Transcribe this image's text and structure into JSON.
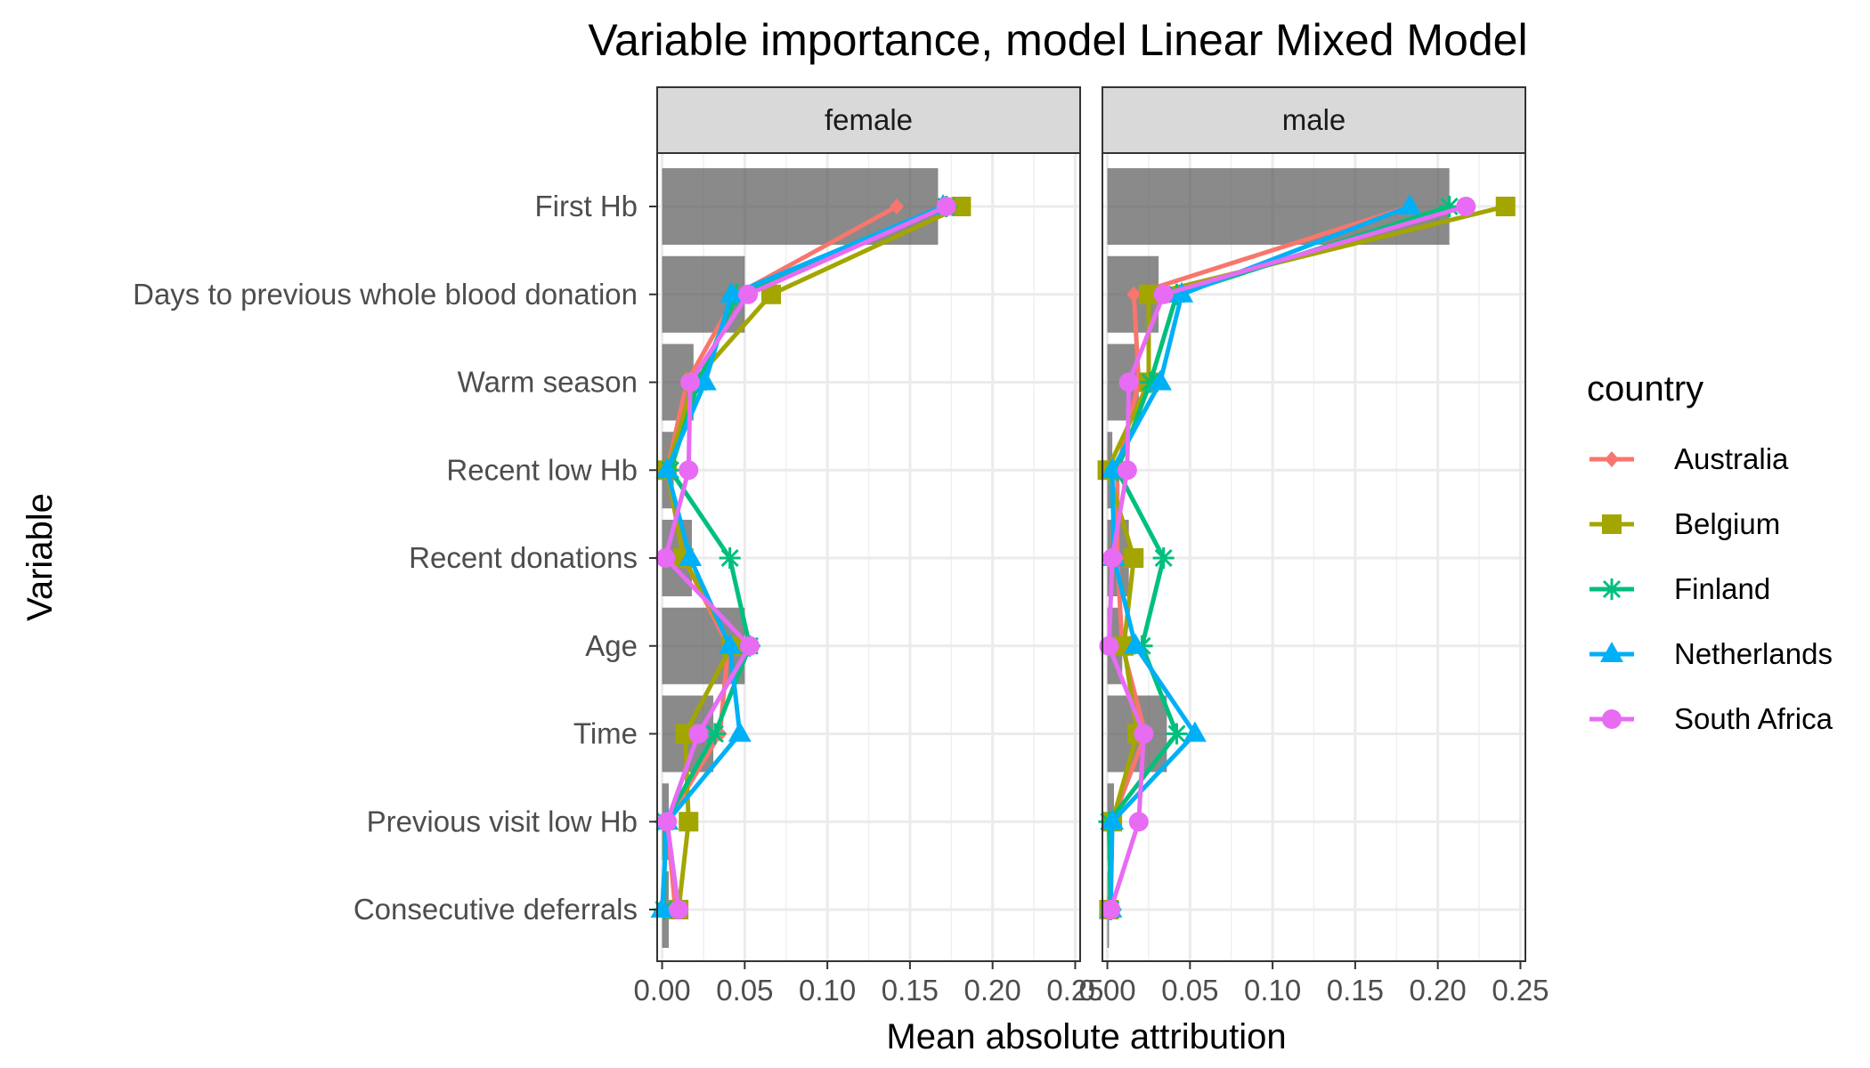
{
  "chart_data": {
    "type": "bar",
    "title": "Variable importance, model Linear Mixed Model",
    "xlabel": "Mean absolute attribution",
    "ylabel": "Variable",
    "xlim": [
      -0.003,
      0.253
    ],
    "xticks": [
      0.0,
      0.05,
      0.1,
      0.15,
      0.2,
      0.25
    ],
    "xtick_labels": [
      "0.00",
      "0.05",
      "0.10",
      "0.15",
      "0.20",
      "0.25"
    ],
    "grid": true,
    "legend_position": "right",
    "legend_title": "country",
    "categories": [
      "First Hb",
      "Days to previous whole blood donation",
      "Warm season",
      "Recent low Hb",
      "Recent donations",
      "Age",
      "Time",
      "Previous visit low Hb",
      "Consecutive deferrals"
    ],
    "countries": [
      {
        "name": "Australia",
        "color": "#F8766D",
        "marker": "diamond"
      },
      {
        "name": "Belgium",
        "color": "#A3A500",
        "marker": "square"
      },
      {
        "name": "Finland",
        "color": "#00BF7D",
        "marker": "asterisk"
      },
      {
        "name": "Netherlands",
        "color": "#00B0F6",
        "marker": "triangle"
      },
      {
        "name": "South Africa",
        "color": "#E76BF3",
        "marker": "circle"
      }
    ],
    "panels": [
      {
        "label": "female",
        "bars": [
          0.167,
          0.05,
          0.019,
          0.007,
          0.018,
          0.05,
          0.031,
          0.004,
          0.004
        ],
        "series": [
          {
            "name": "Australia",
            "values": [
              0.142,
              0.045,
              0.015,
              0.003,
              0.013,
              0.04,
              0.035,
              0.003,
              0.008
            ]
          },
          {
            "name": "Belgium",
            "values": [
              0.181,
              0.066,
              0.019,
              0.003,
              0.013,
              0.042,
              0.014,
              0.016,
              0.01
            ]
          },
          {
            "name": "Finland",
            "values": [
              0.172,
              0.045,
              0.022,
              0.005,
              0.041,
              0.053,
              0.032,
              0.002,
              0.001
            ]
          },
          {
            "name": "Netherlands",
            "values": [
              0.17,
              0.042,
              0.026,
              0.003,
              0.017,
              0.041,
              0.047,
              0.003,
              0.0
            ]
          },
          {
            "name": "South Africa",
            "values": [
              0.172,
              0.052,
              0.017,
              0.016,
              0.002,
              0.053,
              0.022,
              0.003,
              0.01
            ]
          }
        ]
      },
      {
        "label": "male",
        "bars": [
          0.207,
          0.031,
          0.019,
          0.003,
          0.013,
          0.009,
          0.036,
          0.004,
          0.001
        ],
        "series": [
          {
            "name": "Australia",
            "values": [
              0.183,
              0.016,
              0.019,
              0.006,
              0.006,
              0.009,
              0.023,
              0.003,
              0.001
            ]
          },
          {
            "name": "Belgium",
            "values": [
              0.241,
              0.025,
              0.025,
              0.0,
              0.016,
              0.01,
              0.018,
              0.003,
              0.001
            ]
          },
          {
            "name": "Finland",
            "values": [
              0.207,
              0.042,
              0.026,
              0.006,
              0.034,
              0.021,
              0.042,
              0.001,
              0.002
            ]
          },
          {
            "name": "Netherlands",
            "values": [
              0.183,
              0.045,
              0.032,
              0.003,
              0.004,
              0.017,
              0.053,
              0.003,
              0.002
            ]
          },
          {
            "name": "South Africa",
            "values": [
              0.217,
              0.034,
              0.013,
              0.012,
              0.003,
              0.001,
              0.022,
              0.019,
              0.002
            ]
          }
        ]
      }
    ]
  }
}
